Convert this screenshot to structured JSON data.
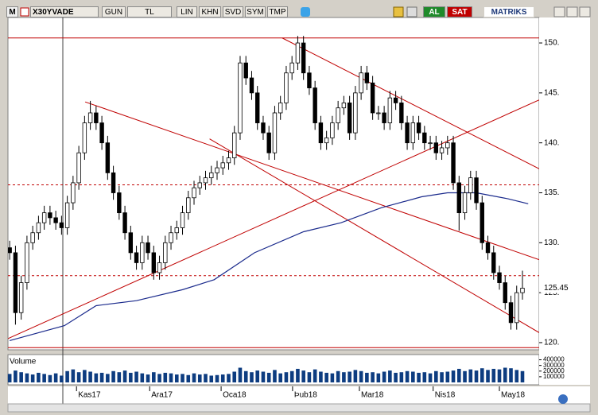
{
  "toolbar": {
    "app_icon": "M",
    "symbol": "X30YVADE",
    "buttons": [
      "GUN",
      "TL",
      "LIN",
      "KHN",
      "SVD",
      "SYM",
      "TMP"
    ],
    "buy": "AL",
    "sell": "SAT",
    "brand": "MATRIKS"
  },
  "chart_data": {
    "type": "candlestick",
    "xlim": [
      -0.3,
      91.9
    ],
    "xticks": [
      {
        "value": 11.6,
        "label": "Kas17"
      },
      {
        "value": 24.3,
        "label": "Ara17"
      },
      {
        "value": 36.7,
        "label": "Oca18"
      },
      {
        "value": 49.1,
        "label": "Þub18"
      },
      {
        "value": 60.7,
        "label": "Mar18"
      },
      {
        "value": 73.5,
        "label": "Nis18"
      },
      {
        "value": 85,
        "label": "May18"
      }
    ],
    "ylim": [
      119.28,
      152.55
    ],
    "yticks": [
      {
        "value": 120,
        "label": "120."
      },
      {
        "value": 125,
        "label": "125."
      },
      {
        "value": 130,
        "label": "130."
      },
      {
        "value": 135,
        "label": "135."
      },
      {
        "value": 140,
        "label": "140."
      },
      {
        "value": 145,
        "label": "145."
      },
      {
        "value": 150,
        "label": "150."
      }
    ],
    "up_color": "#ffffff",
    "down_color": "#000000",
    "open": [
      129.5,
      129,
      123,
      126,
      130,
      131,
      132,
      133,
      132.5,
      132,
      131.5,
      134,
      136,
      139,
      142,
      143,
      142,
      140,
      137,
      135,
      133,
      131,
      129,
      128,
      130,
      129,
      127,
      128,
      130,
      131,
      131.5,
      133,
      134.5,
      135.5,
      136,
      136.5,
      137,
      137.5,
      138,
      138.5,
      141,
      148,
      146.5,
      145,
      142,
      141,
      139,
      143,
      144,
      147,
      148,
      150,
      147,
      145.5,
      142,
      140,
      140.5,
      142,
      143.5,
      144,
      141,
      145,
      147,
      146,
      143,
      143,
      142,
      144.5,
      144,
      142,
      140,
      142,
      141,
      140,
      140,
      139,
      139.5,
      140,
      136,
      133,
      135,
      136.5,
      134,
      130,
      129,
      127,
      126,
      124,
      122,
      125
    ],
    "high": [
      130.2,
      129.7,
      126.7,
      130.7,
      131.7,
      132.7,
      133.7,
      133.7,
      133.2,
      132.7,
      134.7,
      136.7,
      139.7,
      142.7,
      144.2,
      143.7,
      142.7,
      140.7,
      137.7,
      135.7,
      133.7,
      131.7,
      129.7,
      130.7,
      130.7,
      129.7,
      128.7,
      130.7,
      131.7,
      132.2,
      133.7,
      135.2,
      136.2,
      136.7,
      137.2,
      137.7,
      138.2,
      138.7,
      139.2,
      141.7,
      148.7,
      148.7,
      147.2,
      145.7,
      142.7,
      141.7,
      143.7,
      144.7,
      147.7,
      148.7,
      150.7,
      150.7,
      147.7,
      146.2,
      142.7,
      141.2,
      142.7,
      144.2,
      144.7,
      144.7,
      145.7,
      147.7,
      147.7,
      146.7,
      143.7,
      143.7,
      145.2,
      145.2,
      144.7,
      142.7,
      142.7,
      142.7,
      141.7,
      140.7,
      140.7,
      140.2,
      140.7,
      140.7,
      136.7,
      135.7,
      137.2,
      137.2,
      134.7,
      130.7,
      129.7,
      127.7,
      126.7,
      124.7,
      125.7,
      127.2
    ],
    "low": [
      128.3,
      121.8,
      122.3,
      125.3,
      129.3,
      130.3,
      131.3,
      131.8,
      131.3,
      130.8,
      130.8,
      133.3,
      135.3,
      138.3,
      141.3,
      141.3,
      139.3,
      136.3,
      134.3,
      132.3,
      130.3,
      128.3,
      127.3,
      127.3,
      128.3,
      126.3,
      126.3,
      127.3,
      129.3,
      130.3,
      130.8,
      132.3,
      133.8,
      134.8,
      135.3,
      135.8,
      136.3,
      136.8,
      137.3,
      137.8,
      140.3,
      145.8,
      144.3,
      141.3,
      140.3,
      138.3,
      138.3,
      142.3,
      143.3,
      146.3,
      147.3,
      146.3,
      144.8,
      141.3,
      139.3,
      139.3,
      139.8,
      141.3,
      142.8,
      140.3,
      140.3,
      144.3,
      145.3,
      142.3,
      142.3,
      141.3,
      141.3,
      143.3,
      141.3,
      139.3,
      139.3,
      140.3,
      139.3,
      139.3,
      138.3,
      138.3,
      138.8,
      135.3,
      131.2,
      132.3,
      134.3,
      133.3,
      129.3,
      128.3,
      126.3,
      125.3,
      123.3,
      121.3,
      121.3,
      124.3
    ],
    "close": [
      129,
      123,
      126,
      130,
      131,
      132,
      133,
      132.5,
      132,
      131.5,
      134,
      136,
      139,
      142,
      143,
      142,
      140,
      137,
      135,
      133,
      131,
      129,
      128,
      130,
      129,
      127,
      128,
      130,
      131,
      131.5,
      133,
      134.5,
      135.5,
      136,
      136.5,
      137,
      137.5,
      138,
      138.5,
      141,
      148,
      146.5,
      145,
      142,
      141,
      139,
      143,
      144,
      147,
      148,
      150,
      147,
      145.5,
      142,
      140,
      140.5,
      142,
      143.5,
      144,
      141,
      145,
      147,
      146,
      143,
      143,
      142,
      144.5,
      144,
      142,
      140,
      142,
      141,
      140,
      140,
      139,
      139.5,
      140,
      136,
      133,
      135,
      136.5,
      134,
      130,
      129,
      127,
      126,
      124,
      122,
      125,
      125.45
    ],
    "moving_average": {
      "color": "#1a2a8c",
      "x": [
        0,
        9.5,
        15,
        22,
        30,
        35.5,
        42.5,
        51,
        57.5,
        64.5,
        71.5,
        76,
        81,
        86.5,
        90
      ],
      "values": [
        120.2,
        121.7,
        123.7,
        124.2,
        125.3,
        126.3,
        129,
        131.1,
        132,
        133.5,
        134.6,
        135,
        135,
        134.4,
        133.9
      ]
    },
    "line_color": "#c00000",
    "levels": [
      {
        "value": 150.5,
        "dashed": false
      },
      {
        "value": 135.8,
        "dashed": true
      },
      {
        "value": 126.7,
        "dashed": true
      },
      {
        "value": 119.5,
        "dashed": false
      }
    ],
    "trend_lines": [
      {
        "x": [
          -0.3,
          91.9
        ],
        "y": [
          120.4,
          144.3
        ]
      },
      {
        "x": [
          47.3,
          91.9
        ],
        "y": [
          150.5,
          137.4
        ]
      },
      {
        "x": [
          13.1,
          91.9
        ],
        "y": [
          144.1,
          128.3
        ]
      },
      {
        "x": [
          34.7,
          91.9
        ],
        "y": [
          140.4,
          121
        ]
      }
    ],
    "volume": {
      "label": "Volume",
      "color": "#0d3c80",
      "ylim": [
        0,
        450000
      ],
      "yticks": [
        100000,
        200000,
        300000,
        400000
      ],
      "values": [
        150000,
        210000,
        180000,
        160000,
        140000,
        170000,
        150000,
        130000,
        160000,
        120000,
        200000,
        230000,
        180000,
        220000,
        190000,
        160000,
        170000,
        150000,
        200000,
        180000,
        210000,
        170000,
        190000,
        160000,
        140000,
        180000,
        150000,
        170000,
        160000,
        140000,
        150000,
        130000,
        160000,
        140000,
        150000,
        120000,
        130000,
        140000,
        150000,
        190000,
        260000,
        200000,
        180000,
        210000,
        190000,
        170000,
        220000,
        160000,
        180000,
        200000,
        240000,
        210000,
        180000,
        230000,
        190000,
        170000,
        160000,
        200000,
        180000,
        190000,
        220000,
        200000,
        170000,
        180000,
        160000,
        190000,
        210000,
        170000,
        180000,
        200000,
        190000,
        170000,
        180000,
        160000,
        200000,
        180000,
        190000,
        210000,
        240000,
        200000,
        230000,
        210000,
        250000,
        220000,
        240000,
        230000,
        260000,
        250000,
        220000,
        200000
      ]
    }
  }
}
